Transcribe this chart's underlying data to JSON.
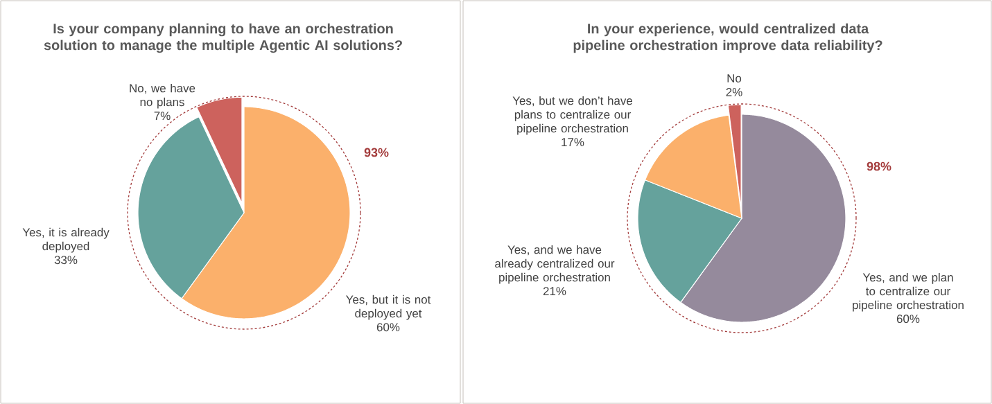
{
  "chart_data": [
    {
      "type": "pie",
      "title": "Is your company planning to have an orchestration solution to manage the multiple Agentic AI solutions?",
      "categories": [
        "Yes, but it is not deployed yet",
        "Yes, it is already deployed",
        "No, we have no plans"
      ],
      "values": [
        60,
        33,
        7
      ],
      "value_labels": [
        "60%",
        "33%",
        "7%"
      ],
      "colors": [
        "#fbb06b",
        "#65a29c",
        "#cd625d"
      ],
      "annotations": [
        "93%"
      ]
    },
    {
      "type": "pie",
      "title": "In your experience, would centralized data pipeline orchestration improve data reliability?",
      "categories": [
        "Yes, and we plan to centralize our pipeline orchestration",
        "Yes, and we have already centralized our pipeline orchestration",
        "Yes, but we don’t have plans to centralize our pipeline orchestration",
        "No"
      ],
      "values": [
        60,
        21,
        17,
        2
      ],
      "value_labels": [
        "60%",
        "21%",
        "17%",
        "2%"
      ],
      "colors": [
        "#958a9c",
        "#65a29c",
        "#fbb06b",
        "#cd625d"
      ],
      "annotations": [
        "98%"
      ]
    }
  ]
}
